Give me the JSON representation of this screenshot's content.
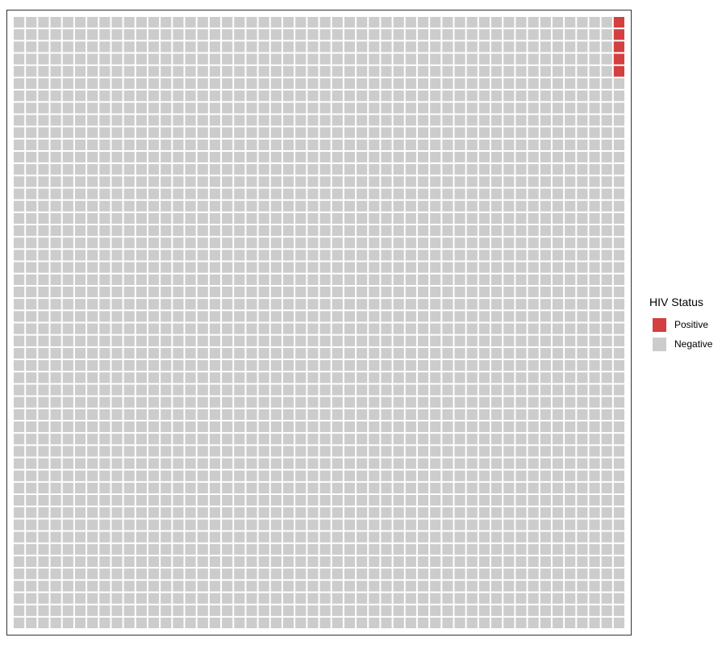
{
  "chart_data": {
    "type": "waffle",
    "title": "",
    "xlabel": "",
    "ylabel": "",
    "grid_columns": 50,
    "grid_rows": 50,
    "total": 2500,
    "fill_order": "column-wise from the top-right square, downward",
    "legend": {
      "title": "HIV Status",
      "placement": "right"
    },
    "series": [
      {
        "name": "Positive",
        "value": 5,
        "color": "#d43f3f"
      },
      {
        "name": "Negative",
        "value": 2495,
        "color": "#cccccc"
      }
    ]
  },
  "legend_items": [
    {
      "label": "Positive",
      "color": "#d43f3f"
    },
    {
      "label": "Negative",
      "color": "#cccccc"
    }
  ]
}
